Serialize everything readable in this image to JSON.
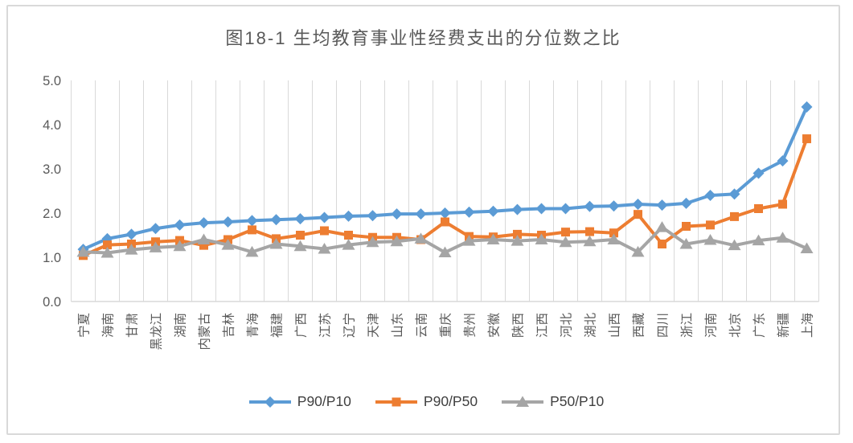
{
  "chart": {
    "title": "图18-1 生均教育事业性经费支出的分位数之比"
  },
  "chart_data": {
    "type": "line",
    "title": "图18-1 生均教育事业性经费支出的分位数之比",
    "categories": [
      "宁夏",
      "海南",
      "甘肃",
      "黑龙江",
      "湖南",
      "内蒙古",
      "吉林",
      "青海",
      "福建",
      "广西",
      "江苏",
      "辽宁",
      "天津",
      "山东",
      "云南",
      "重庆",
      "贵州",
      "安徽",
      "陕西",
      "江西",
      "河北",
      "湖北",
      "山西",
      "西藏",
      "四川",
      "浙江",
      "河南",
      "北京",
      "广东",
      "新疆",
      "上海"
    ],
    "series": [
      {
        "name": "P90/P10",
        "color": "#5B9BD5",
        "marker": "diamond",
        "values": [
          1.18,
          1.42,
          1.52,
          1.65,
          1.73,
          1.78,
          1.8,
          1.83,
          1.85,
          1.87,
          1.9,
          1.93,
          1.94,
          1.98,
          1.98,
          2.0,
          2.02,
          2.04,
          2.08,
          2.1,
          2.1,
          2.15,
          2.16,
          2.2,
          2.18,
          2.22,
          2.4,
          2.43,
          2.9,
          3.18,
          4.4
        ]
      },
      {
        "name": "P90/P50",
        "color": "#ED7D31",
        "marker": "square",
        "values": [
          1.04,
          1.28,
          1.3,
          1.35,
          1.38,
          1.27,
          1.4,
          1.62,
          1.42,
          1.5,
          1.6,
          1.5,
          1.45,
          1.45,
          1.4,
          1.8,
          1.47,
          1.46,
          1.52,
          1.5,
          1.57,
          1.58,
          1.55,
          1.97,
          1.3,
          1.7,
          1.73,
          1.92,
          2.1,
          2.2,
          3.68
        ]
      },
      {
        "name": "P50/P10",
        "color": "#A5A5A5",
        "marker": "triangle",
        "values": [
          1.12,
          1.1,
          1.17,
          1.22,
          1.25,
          1.4,
          1.28,
          1.12,
          1.3,
          1.25,
          1.19,
          1.28,
          1.34,
          1.36,
          1.42,
          1.11,
          1.37,
          1.4,
          1.37,
          1.4,
          1.34,
          1.36,
          1.4,
          1.12,
          1.68,
          1.3,
          1.39,
          1.27,
          1.38,
          1.44,
          1.2
        ]
      }
    ],
    "y_axis": {
      "min": 0,
      "max": 5,
      "step": 1,
      "tick_labels": [
        "0.0",
        "1.0",
        "2.0",
        "3.0",
        "4.0",
        "5.0"
      ]
    },
    "x_axis": {
      "label_rotation": -90
    },
    "grid": "vertical-only",
    "legend_position": "bottom",
    "style_colors": {
      "gridline": "#D9D9D9",
      "axis_line": "#D9D9D9",
      "axis_text": "#595959",
      "title_text": "#595959",
      "legend_text": "#404040",
      "frame_border": "#D9D9D9",
      "background": "#FFFFFF"
    }
  }
}
